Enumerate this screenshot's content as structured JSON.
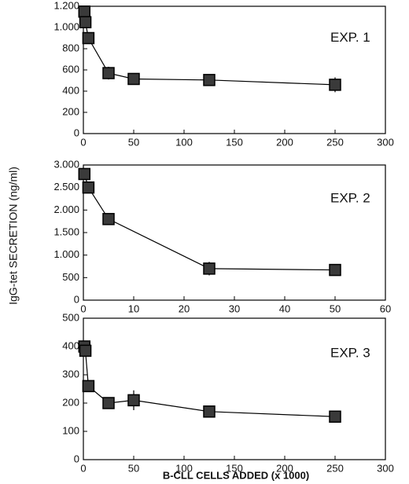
{
  "ylabel": "IgG-tet SECRETION (ng/ml)",
  "xlabel": "B-CLL CELLS ADDED (x 1000)",
  "chart_data": [
    {
      "type": "line",
      "annotation": "EXP. 1",
      "x": [
        1,
        2,
        5,
        25,
        50,
        125,
        250
      ],
      "series": [
        {
          "color": "#3a3a3a",
          "values": [
            1150,
            1050,
            900,
            570,
            515,
            505,
            460
          ],
          "errors": [
            0,
            0,
            0,
            60,
            50,
            40,
            70
          ]
        }
      ],
      "xlim": [
        0,
        300
      ],
      "xticks": [
        0,
        50,
        100,
        150,
        200,
        250,
        300
      ],
      "ylim": [
        0,
        1200
      ],
      "yticks": [
        0,
        200,
        400,
        600,
        800,
        {
          "value": 1000,
          "label": "1.000"
        },
        {
          "value": 1200,
          "label": "1.200"
        }
      ]
    },
    {
      "type": "line",
      "annotation": "EXP. 2",
      "x": [
        0.2,
        1,
        5,
        25,
        50
      ],
      "series": [
        {
          "color": "#3a3a3a",
          "values": [
            2800,
            2500,
            1800,
            700,
            670
          ],
          "errors": [
            0,
            50,
            100,
            150,
            120
          ]
        }
      ],
      "xlim": [
        0,
        60
      ],
      "xticks": [
        0,
        10,
        20,
        30,
        40,
        50,
        60
      ],
      "ylim": [
        0,
        3000
      ],
      "yticks": [
        0,
        500,
        {
          "value": 1000,
          "label": "1.000"
        },
        {
          "value": 1500,
          "label": "1.500"
        },
        {
          "value": 2000,
          "label": "2.000"
        },
        {
          "value": 2500,
          "label": "2.500"
        },
        {
          "value": 3000,
          "label": "3.000"
        }
      ]
    },
    {
      "type": "line",
      "annotation": "EXP. 3",
      "x": [
        1,
        2,
        5,
        25,
        50,
        125,
        250
      ],
      "series": [
        {
          "color": "#3a3a3a",
          "values": [
            400,
            385,
            260,
            200,
            210,
            170,
            152
          ],
          "errors": [
            0,
            0,
            15,
            15,
            35,
            20,
            20
          ]
        }
      ],
      "xlim": [
        0,
        300
      ],
      "xticks": [
        0,
        50,
        100,
        150,
        200,
        250,
        300
      ],
      "ylim": [
        0,
        500
      ],
      "yticks": [
        0,
        100,
        200,
        300,
        400,
        500
      ]
    }
  ]
}
